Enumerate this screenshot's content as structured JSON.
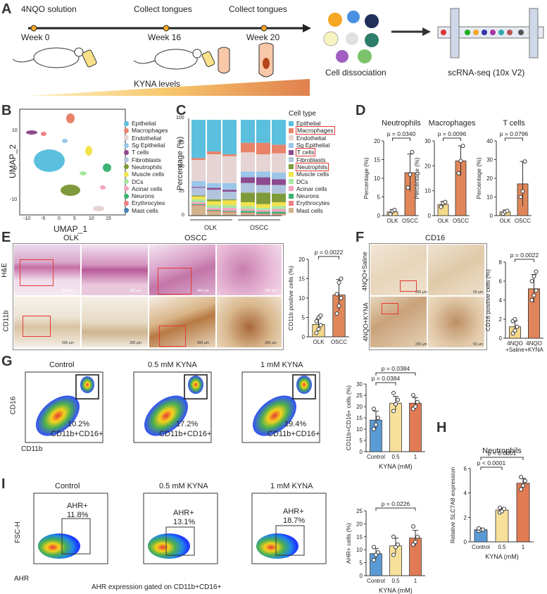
{
  "panelA": {
    "letter": "A",
    "timeline": [
      "4NQO solution",
      "Collect tongues",
      "Collect tongues"
    ],
    "weeks": [
      "Week 0",
      "Week 16",
      "Week 20"
    ],
    "kyna_label": "KYNA levels",
    "cell_dissociation": "Cell dissociation",
    "scrna": "scRNA-seq (10x V2)"
  },
  "panelB": {
    "letter": "B",
    "xlabel": "UMAP_1",
    "ylabel": "UMAP_2",
    "xticks": [
      "-10",
      "-5",
      "0",
      "5",
      "10",
      "15"
    ],
    "yticks": [
      "10",
      "0",
      "-10"
    ],
    "legend": [
      {
        "name": "Epithelial",
        "color": "#5bc0de"
      },
      {
        "name": "Macrophages",
        "color": "#e8836a"
      },
      {
        "name": "Endothelial",
        "color": "#e6d4d4"
      },
      {
        "name": "Sg Epithelial",
        "color": "#9ac6e8"
      },
      {
        "name": "T cells",
        "color": "#8e4a8e"
      },
      {
        "name": "Fibroblasts",
        "color": "#b0c4de"
      },
      {
        "name": "Neutrophils",
        "color": "#7f9a3a"
      },
      {
        "name": "Muscle cells",
        "color": "#f2e34c"
      },
      {
        "name": "DCs",
        "color": "#a8e6a1"
      },
      {
        "name": "Acinar cells",
        "color": "#f4a3c0"
      },
      {
        "name": "Neurons",
        "color": "#3cb371"
      },
      {
        "name": "Erythrocytes",
        "color": "#f08080"
      },
      {
        "name": "Mast cells",
        "color": "#4682b4"
      }
    ]
  },
  "panelC": {
    "letter": "C",
    "ylabel": "Percentage (%)",
    "yticks": [
      "0",
      "25",
      "50",
      "75",
      "100"
    ],
    "groups": [
      "OLK",
      "OSCC"
    ],
    "legend_title": "Cell type",
    "legend": [
      {
        "name": "Epithelial",
        "color": "#5bc0de",
        "boxed": false
      },
      {
        "name": "Macrophages",
        "color": "#e8836a",
        "boxed": true
      },
      {
        "name": "Endothelial",
        "color": "#e6d4d4",
        "boxed": false
      },
      {
        "name": "Sg Epithelial",
        "color": "#9ac6e8",
        "boxed": false
      },
      {
        "name": "T cells",
        "color": "#8e4a8e",
        "boxed": true
      },
      {
        "name": "Fibroblasts",
        "color": "#b0c4de",
        "boxed": false
      },
      {
        "name": "Neutrophils",
        "color": "#7f9a3a",
        "boxed": true
      },
      {
        "name": "Muscle cells",
        "color": "#f2e34c",
        "boxed": false
      },
      {
        "name": "DCs",
        "color": "#a8e6a1",
        "boxed": false
      },
      {
        "name": "Acinar cells",
        "color": "#f4a3c0",
        "boxed": false
      },
      {
        "name": "Neurons",
        "color": "#3cb371",
        "boxed": false
      },
      {
        "name": "Erythrocytes",
        "color": "#f08080",
        "boxed": false
      },
      {
        "name": "Mast cells",
        "color": "#d2b48c",
        "boxed": false
      }
    ]
  },
  "chart_data": [
    {
      "type": "bar",
      "title": "Neutrophils",
      "categories": [
        "OLK",
        "OSCC"
      ],
      "values": [
        1.0,
        11.5
      ],
      "errors": [
        0.6,
        5.0
      ],
      "points": [
        [
          0.4,
          1.2,
          1.5
        ],
        [
          7.5,
          11,
          17
        ]
      ],
      "ylabel": "Percentage (%)",
      "ylim": [
        0,
        20
      ],
      "yticks": [
        "0",
        "5",
        "10",
        "15",
        "20"
      ],
      "p": "p = 0.0340",
      "colors": [
        "#f5d98b",
        "#e0865a"
      ]
    },
    {
      "type": "bar",
      "title": "Macrophages",
      "categories": [
        "OLK",
        "OSCC"
      ],
      "values": [
        4.5,
        22
      ],
      "errors": [
        1.2,
        6
      ],
      "points": [
        [
          3.5,
          5,
          5.5
        ],
        [
          17,
          22,
          28
        ]
      ],
      "ylabel": "Percentage (%)",
      "ylim": [
        0,
        30
      ],
      "yticks": [
        "0",
        "10",
        "20",
        "30"
      ],
      "p": "p = 0.0096",
      "colors": [
        "#f5d98b",
        "#e0865a"
      ]
    },
    {
      "type": "bar",
      "title": "T cells",
      "categories": [
        "OLK",
        "OSCC"
      ],
      "values": [
        2,
        17
      ],
      "errors": [
        1,
        12
      ],
      "points": [
        [
          1,
          2,
          2.5
        ],
        [
          10,
          13,
          29
        ]
      ],
      "ylabel": "Percentage (%)",
      "ylim": [
        0,
        40
      ],
      "yticks": [
        "0",
        "10",
        "20",
        "30",
        "40"
      ],
      "p": "p = 0.0796",
      "colors": [
        "#f5d98b",
        "#e0865a"
      ]
    },
    {
      "type": "bar",
      "title": "",
      "categories": [
        "OLK",
        "OSCC"
      ],
      "values": [
        3.2,
        10.8
      ],
      "errors": [
        1.5,
        4
      ],
      "points": [
        [
          1,
          2,
          3,
          4,
          5,
          5.5
        ],
        [
          6,
          8,
          10,
          11,
          14,
          15
        ]
      ],
      "ylabel": "CD11b positive cells (%)",
      "ylim": [
        0,
        20
      ],
      "yticks": [
        "0",
        "5",
        "10",
        "15",
        "20"
      ],
      "p": "p = 0.0022",
      "colors": [
        "#f5d98b",
        "#e0865a"
      ]
    },
    {
      "type": "bar",
      "title": "",
      "categories": [
        "4NQO\n+Saline",
        "4NQO\n+KYNA"
      ],
      "values": [
        1.2,
        5.2
      ],
      "errors": [
        0.6,
        1.5
      ],
      "points": [
        [
          0.5,
          0.8,
          1.2,
          1.8,
          2
        ],
        [
          4,
          4.5,
          5,
          6,
          6.5,
          7
        ]
      ],
      "ylabel": "CD16 positive cells (%)",
      "ylim": [
        0,
        8
      ],
      "yticks": [
        "0",
        "2",
        "4",
        "6",
        "8"
      ],
      "p": "p = 0.0022",
      "colors": [
        "#f5d98b",
        "#e0865a"
      ]
    },
    {
      "type": "bar",
      "title": "",
      "categories": [
        "Control",
        "0.5",
        "1"
      ],
      "values": [
        14,
        21.5,
        21.5
      ],
      "errors": [
        4,
        3,
        2.5
      ],
      "points": [
        [
          10,
          12,
          15,
          19
        ],
        [
          18,
          21,
          23,
          26
        ],
        [
          19,
          20,
          22,
          25
        ]
      ],
      "xlabel": "KYNA (mM)",
      "ylabel": "CD11b+CD16+ cells (%)",
      "ylim": [
        0,
        30
      ],
      "yticks": [
        "0",
        "5",
        "10",
        "15",
        "20",
        "25",
        "30"
      ],
      "p": [
        "p = 0.0384",
        "p = 0.0384"
      ],
      "colors": [
        "#5b9bd5",
        "#f7e09a",
        "#e07b54"
      ]
    },
    {
      "type": "bar",
      "title": "Neutrophils",
      "categories": [
        "Control",
        "0.5",
        "1"
      ],
      "values": [
        1.0,
        2.6,
        4.8
      ],
      "errors": [
        0.1,
        0.2,
        0.4
      ],
      "points": [
        [
          0.9,
          1.0,
          1.0,
          1.1
        ],
        [
          2.4,
          2.5,
          2.7,
          2.8
        ],
        [
          4.3,
          4.6,
          5.0,
          5.3
        ]
      ],
      "xlabel": "KYNA (mM)",
      "ylabel": "Relative SLC7A8 expression",
      "ylim": [
        0,
        6
      ],
      "yticks": [
        "0",
        "2",
        "4",
        "6"
      ],
      "p": [
        "p < 0.0001",
        "p < 0.0001"
      ],
      "colors": [
        "#5b9bd5",
        "#f7e09a",
        "#e07b54"
      ]
    },
    {
      "type": "bar",
      "title": "",
      "categories": [
        "Control",
        "0.5",
        "1"
      ],
      "values": [
        8.5,
        11.5,
        14.5
      ],
      "errors": [
        2,
        3,
        3
      ],
      "points": [
        [
          6,
          8,
          9,
          11
        ],
        [
          8,
          11,
          12,
          15
        ],
        [
          12,
          13,
          15,
          19
        ]
      ],
      "xlabel": "KYNA (mM)",
      "ylabel": "AHR+ cells (%)",
      "ylim": [
        0,
        25
      ],
      "yticks": [
        "0",
        "5",
        "10",
        "15",
        "20",
        "25"
      ],
      "p": [
        "p = 0.0226"
      ],
      "colors": [
        "#5b9bd5",
        "#f7e09a",
        "#e07b54"
      ]
    }
  ],
  "panelD": {
    "letter": "D"
  },
  "panelE": {
    "letter": "E",
    "col_olk": "OLK",
    "col_oscc": "OSCC",
    "row_he": "H&E",
    "row_cd11b": "CD11b",
    "scale1": "500 μm",
    "scale2": "300 μm"
  },
  "panelF": {
    "letter": "F",
    "title": "CD16",
    "row1": "4NQO+Saline",
    "row2": "4NQO+KYNA",
    "scale1": "200 μm",
    "scale2": "50 μm"
  },
  "panelG": {
    "letter": "G",
    "titles": [
      "Control",
      "0.5 mM KYNA",
      "1 mM KYNA"
    ],
    "percents": [
      "10.2%",
      "17.2%",
      "19.4%"
    ],
    "gate_label": "CD11b+CD16+",
    "xlabel": "CD11b",
    "ylabel": "CD16"
  },
  "panelH": {
    "letter": "H"
  },
  "panelI": {
    "letter": "I",
    "titles": [
      "Control",
      "0.5 mM KYNA",
      "1 mM KYNA"
    ],
    "gate_name": "AHR+",
    "percents": [
      "11.8%",
      "13.1%",
      "18.7%"
    ],
    "ylabel": "FSC-H",
    "xlabel": "AHR",
    "caption": "AHR expression gated on CD11b+CD16+"
  }
}
